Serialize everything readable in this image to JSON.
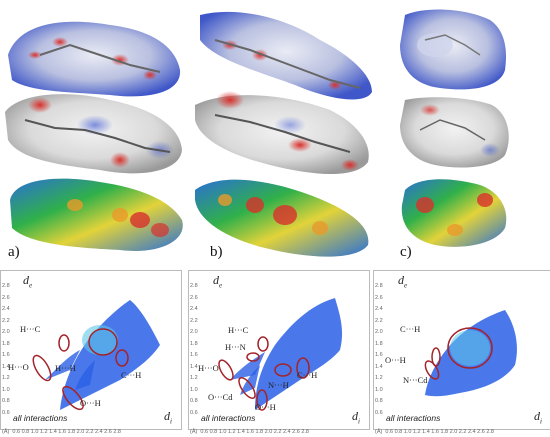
{
  "panels": [
    {
      "label": "a)",
      "plot": {
        "d_e": "d",
        "d_e_sub": "e",
        "d_i": "d",
        "d_i_sub": "i",
        "caption": "all interactions",
        "annotations": [
          "H···C",
          "H···O",
          "H···H",
          "O···H",
          "C···H"
        ]
      }
    },
    {
      "label": "b)",
      "plot": {
        "d_e": "d",
        "d_e_sub": "e",
        "d_i": "d",
        "d_i_sub": "i",
        "caption": "all interactions",
        "annotations": [
          "H···C",
          "H···N",
          "H···O",
          "N···H",
          "C···H",
          "O···Cd",
          "O···H"
        ]
      }
    },
    {
      "label": "c)",
      "plot": {
        "d_e": "d",
        "d_e_sub": "e",
        "d_i": "d",
        "d_i_sub": "i",
        "caption": "all interactions",
        "annotations": [
          "C···H",
          "O···H",
          "N···Cd"
        ]
      }
    }
  ],
  "y_ticks": [
    "2.8",
    "2.6",
    "2.4",
    "2.2",
    "2.0",
    "1.8",
    "1.6",
    "1.4",
    "1.2",
    "1.0",
    "0.8",
    "0.6"
  ],
  "x_unit": "(Å)",
  "x_ticks": "0.6 0.8 1.0 1.2 1.4 1.6 1.8 2.0 2.2 2.4 2.6 2.8",
  "colors": {
    "surface_blue": "#3f57c8",
    "surface_red": "#d8312c",
    "fingerprint": "#2a60e6",
    "ellipse": "#a4232a"
  }
}
